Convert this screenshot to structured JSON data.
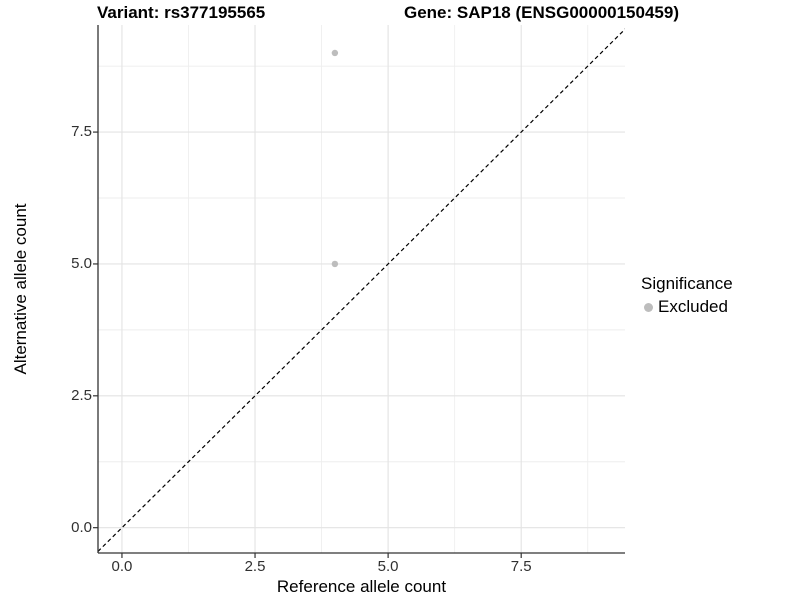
{
  "title": {
    "variant": "Variant: rs377195565",
    "gene": "Gene: SAP18 (ENSG00000150459)"
  },
  "x_axis": {
    "label": "Reference allele count",
    "tick_labels": [
      "0.0",
      "2.5",
      "5.0",
      "7.5"
    ]
  },
  "y_axis": {
    "label": "Alternative allele count",
    "tick_labels": [
      "0.0",
      "2.5",
      "5.0",
      "7.5"
    ]
  },
  "legend": {
    "title": "Significance",
    "items": [
      {
        "label": "Excluded",
        "color": "#bdbdbd",
        "marker": "circle-icon"
      }
    ]
  },
  "chart_data": {
    "type": "scatter",
    "title": "Variant: rs377195565        Gene: SAP18 (ENSG00000150459)",
    "xlabel": "Reference allele count",
    "ylabel": "Alternative allele count",
    "xlim": [
      -0.45,
      9.45
    ],
    "ylim": [
      -0.48,
      9.53
    ],
    "x_ticks": [
      0,
      2.5,
      5,
      7.5
    ],
    "y_ticks": [
      0,
      2.5,
      5,
      7.5
    ],
    "x_minor_ticks": [
      1.25,
      3.75,
      6.25,
      8.75
    ],
    "y_minor_ticks": [
      1.25,
      3.75,
      6.25,
      8.75
    ],
    "grid": true,
    "legend_position": "right",
    "series": [
      {
        "name": "Excluded",
        "color": "#bdbdbd",
        "points": [
          [
            4,
            9
          ],
          [
            4,
            5
          ]
        ]
      }
    ],
    "reference_line": {
      "kind": "identity",
      "dash": "dashed",
      "color": "#000000"
    }
  },
  "colors": {
    "background": "#ffffff",
    "point": "#bdbdbd",
    "grid_major": "#e3e3e3",
    "grid_minor": "#eeeeee",
    "axis_line": "#333333",
    "tick_mark": "#333333",
    "title_text": "#000000",
    "tick_text": "#303030"
  }
}
